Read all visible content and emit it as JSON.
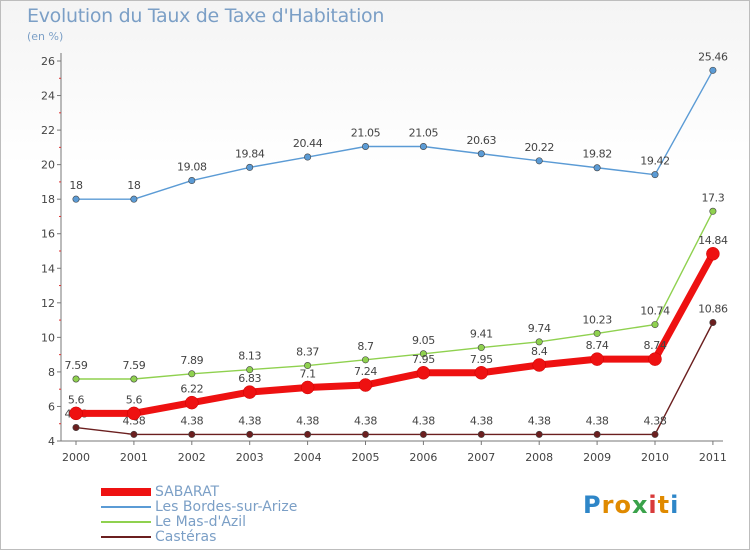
{
  "header": {
    "title": "Evolution du Taux de Taxe d'Habitation",
    "subtitle": "(en %)"
  },
  "chart_data": {
    "type": "line",
    "categories": [
      "2000",
      "2001",
      "2002",
      "2003",
      "2004",
      "2005",
      "2006",
      "2007",
      "2008",
      "2009",
      "2010",
      "2011"
    ],
    "ylim": [
      4,
      26
    ],
    "yticks": [
      4,
      6,
      8,
      10,
      12,
      14,
      16,
      18,
      20,
      22,
      24,
      26
    ],
    "grid": false,
    "legend_position": "bottom-left",
    "series": [
      {
        "name": "Les Bordes-sur-Arize",
        "color": "#5b9bd5",
        "emphasis": false,
        "values": [
          18,
          18,
          19.08,
          19.84,
          20.44,
          21.05,
          21.05,
          20.63,
          20.22,
          19.82,
          19.42,
          25.46
        ],
        "labels": [
          "18",
          "18",
          "19.08",
          "19.84",
          "20.44",
          "21.05",
          "21.05",
          "20.63",
          "20.22",
          "19.82",
          "19.42",
          "25.46"
        ]
      },
      {
        "name": "Le Mas-d'Azil",
        "color": "#8fd14f",
        "emphasis": false,
        "values": [
          7.59,
          7.59,
          7.89,
          8.13,
          8.37,
          8.7,
          9.05,
          9.41,
          9.74,
          10.23,
          10.74,
          17.3
        ],
        "labels": [
          "7.59",
          "7.59",
          "7.89",
          "8.13",
          "8.37",
          "8.7",
          "9.05",
          "9.41",
          "9.74",
          "10.23",
          "10.74",
          "17.3"
        ]
      },
      {
        "name": "Castéras",
        "color": "#6b1f1f",
        "emphasis": false,
        "values": [
          4.78,
          4.38,
          4.38,
          4.38,
          4.38,
          4.38,
          4.38,
          4.38,
          4.38,
          4.38,
          4.38,
          10.86
        ],
        "labels": [
          "4.78",
          "4.38",
          "4.38",
          "4.38",
          "4.38",
          "4.38",
          "4.38",
          "4.38",
          "4.38",
          "4.38",
          "4.38",
          "10.86"
        ]
      },
      {
        "name": "SABARAT",
        "color": "#ee1111",
        "emphasis": true,
        "values": [
          5.6,
          5.6,
          6.22,
          6.83,
          7.1,
          7.24,
          7.95,
          7.95,
          8.4,
          8.74,
          8.74,
          14.84
        ],
        "labels": [
          "5.6",
          "5.6",
          "6.22",
          "6.83",
          "7.1",
          "7.24",
          "7.95",
          "7.95",
          "8.4",
          "8.74",
          "8.74",
          "14.84"
        ]
      }
    ],
    "legend": [
      "SABARAT",
      "Les Bordes-sur-Arize",
      "Le Mas-d'Azil",
      "Castéras"
    ]
  },
  "logo": {
    "letters": [
      "P",
      "r",
      "o",
      "x",
      "i",
      "t",
      "i"
    ],
    "colors": [
      "#2e86c8",
      "#e08a00",
      "#e08a00",
      "#3aa24a",
      "#d83a3a",
      "#e08a00",
      "#2e86c8"
    ]
  }
}
